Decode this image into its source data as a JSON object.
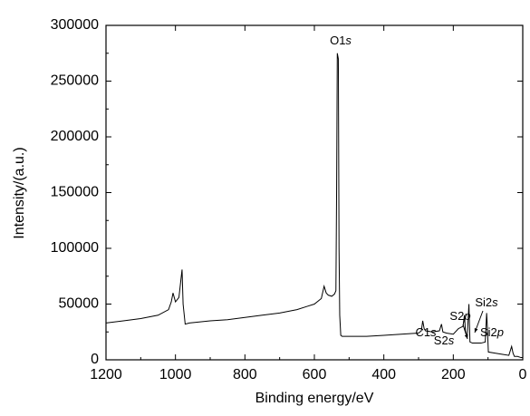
{
  "chart_data": {
    "type": "line",
    "x_label": "Binding energy/eV",
    "y_label": "Intensity/(a.u.)",
    "xlim": [
      1200,
      0
    ],
    "xticks": [
      1200,
      1000,
      800,
      600,
      400,
      200,
      0
    ],
    "ylim": [
      0,
      300000
    ],
    "yticks": [
      0,
      50000,
      100000,
      150000,
      200000,
      250000,
      300000
    ],
    "series": [
      {
        "color": "#000000",
        "x": [
          1200,
          1150,
          1100,
          1050,
          1020,
          1012,
          1007,
          1000,
          990,
          985,
          981,
          978,
          972,
          960,
          900,
          850,
          800,
          750,
          700,
          650,
          620,
          600,
          580,
          572,
          566,
          560,
          550,
          542,
          538,
          536,
          534,
          531,
          529,
          527,
          524,
          520,
          500,
          450,
          400,
          350,
          300,
          292,
          288,
          284,
          280,
          260,
          240,
          234,
          230,
          220,
          200,
          185,
          172,
          168,
          165,
          160,
          157,
          155,
          152,
          145,
          120,
          108,
          104,
          102,
          99,
          80,
          60,
          40,
          32,
          28,
          24,
          15,
          5,
          0
        ],
        "values": [
          33000,
          35000,
          37000,
          40000,
          45000,
          52000,
          60000,
          52000,
          56000,
          70000,
          81000,
          50000,
          32000,
          33000,
          35000,
          36000,
          38000,
          40000,
          42000,
          45000,
          48000,
          50000,
          55000,
          66000,
          60000,
          58000,
          57000,
          59000,
          62000,
          150000,
          275000,
          270000,
          100000,
          40000,
          22000,
          21000,
          21000,
          21000,
          22000,
          23000,
          24000,
          26000,
          35000,
          28000,
          26000,
          25000,
          26000,
          32000,
          25000,
          24000,
          23000,
          28000,
          30000,
          40000,
          26000,
          20000,
          38000,
          50000,
          16000,
          15000,
          15000,
          16000,
          42000,
          30000,
          7000,
          6000,
          5000,
          4000,
          12000,
          6000,
          3000,
          3000,
          2000,
          2000
        ]
      }
    ],
    "annotations": [
      "O1s",
      "C1s",
      "S2s",
      "S2p",
      "Si2s",
      "Si2p"
    ]
  }
}
